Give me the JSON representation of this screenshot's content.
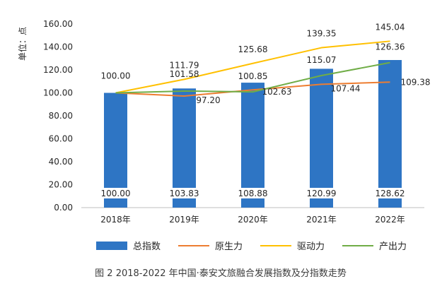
{
  "chart_data": {
    "type": "bar+line",
    "title": "",
    "caption": "图 2 2018-2022 年中国·泰安文旅融合发展指数及分指数走势",
    "ylabel": "单位：点",
    "xlabel": "",
    "ylim": [
      0,
      160
    ],
    "y_ticks": [
      "0.00",
      "20.00",
      "40.00",
      "60.00",
      "80.00",
      "100.00",
      "120.00",
      "140.00",
      "160.00"
    ],
    "categories": [
      "2018年",
      "2019年",
      "2020年",
      "2021年",
      "2022年"
    ],
    "series": [
      {
        "name": "总指数",
        "kind": "bar",
        "color": "#2e75c4",
        "values": [
          100.0,
          103.83,
          108.88,
          120.99,
          128.62
        ],
        "labels": [
          "100.00",
          "103.83",
          "108.88",
          "120.99",
          "128.62"
        ]
      },
      {
        "name": "原生力",
        "kind": "line",
        "color": "#ed7d31",
        "values": [
          100.0,
          97.2,
          102.63,
          107.44,
          109.38
        ],
        "labels": [
          "100.00",
          "97.20",
          "102.63",
          "107.44",
          "109.38"
        ]
      },
      {
        "name": "驱动力",
        "kind": "line",
        "color": "#ffc000",
        "values": [
          100.0,
          111.79,
          125.68,
          139.35,
          145.04
        ],
        "labels": [
          "100.00",
          "111.79",
          "125.68",
          "139.35",
          "145.04"
        ]
      },
      {
        "name": "产出力",
        "kind": "line",
        "color": "#70ad47",
        "values": [
          100.0,
          101.58,
          100.85,
          115.07,
          126.36
        ],
        "labels": [
          "100.00",
          "101.58",
          "100.85",
          "115.07",
          "126.36"
        ]
      }
    ],
    "grid": false,
    "legend": "bottom"
  }
}
